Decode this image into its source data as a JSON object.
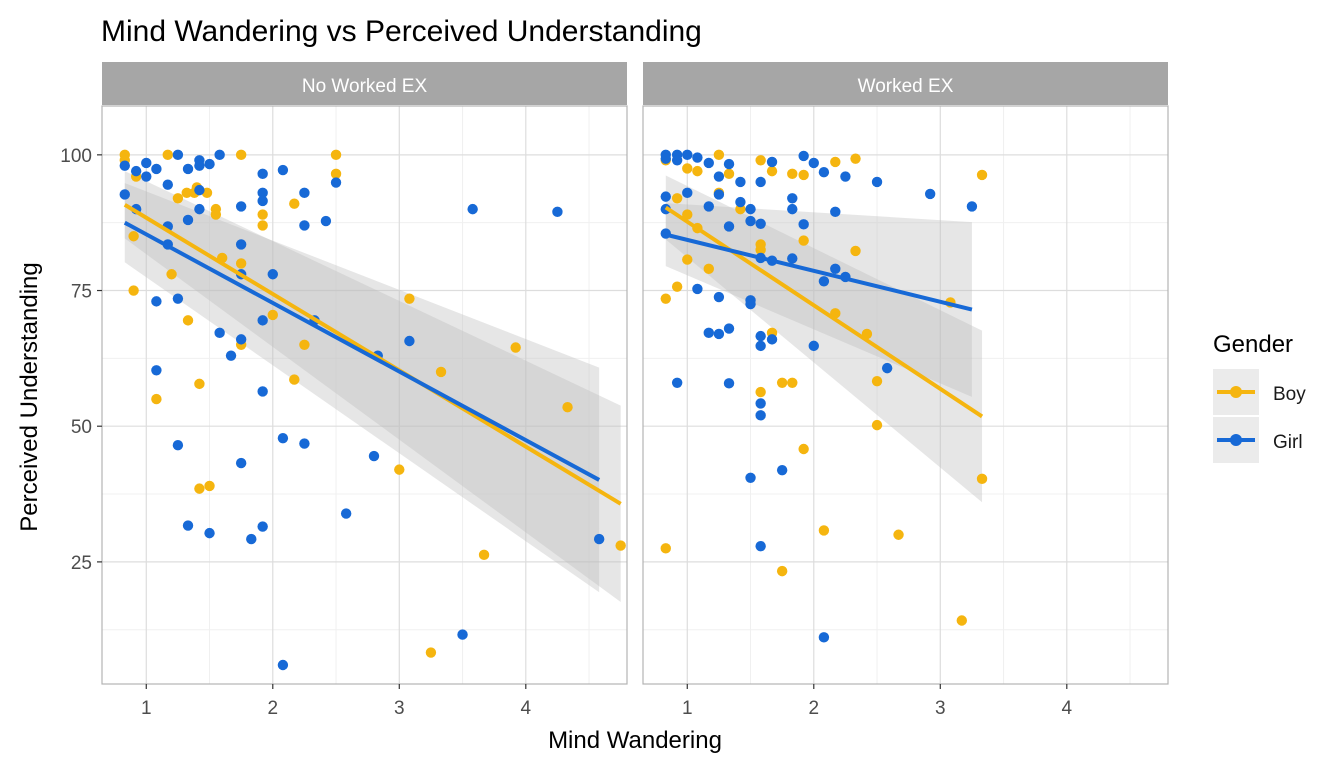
{
  "chart_data": {
    "type": "scatter",
    "title": "Mind Wandering vs Perceived Understanding",
    "xlabel": "Mind Wandering",
    "ylabel": "Perceived Understanding",
    "xlim": [
      0.65,
      4.8
    ],
    "ylim": [
      2.5,
      109
    ],
    "x_ticks": [
      1,
      2,
      3,
      4
    ],
    "y_ticks": [
      25,
      50,
      75,
      100
    ],
    "grid": true,
    "legend_position": "right",
    "legend_title": "Gender",
    "legend": [
      {
        "label": "Boy",
        "color": "#F5B50F"
      },
      {
        "label": "Girl",
        "color": "#1769D6"
      }
    ],
    "band_color": "#BEBEBE",
    "panels": [
      {
        "label": "No Worked EX",
        "series": [
          {
            "name": "Boy",
            "color": "#F5B50F",
            "points": [
              [
                0.83,
                100
              ],
              [
                0.83,
                99
              ],
              [
                0.92,
                96
              ],
              [
                0.9,
                85
              ],
              [
                0.9,
                75
              ],
              [
                1.17,
                100
              ],
              [
                1.2,
                78
              ],
              [
                1.25,
                92
              ],
              [
                1.32,
                93
              ],
              [
                1.38,
                93
              ],
              [
                1.4,
                94
              ],
              [
                1.48,
                93
              ],
              [
                1.55,
                90
              ],
              [
                1.55,
                89
              ],
              [
                1.6,
                81
              ],
              [
                1.75,
                100
              ],
              [
                1.92,
                89
              ],
              [
                1.92,
                87
              ],
              [
                1.75,
                80
              ],
              [
                1.75,
                65
              ],
              [
                2.0,
                70.5
              ],
              [
                2.17,
                91
              ],
              [
                2.25,
                65
              ],
              [
                2.5,
                100
              ],
              [
                2.5,
                96.5
              ],
              [
                1.33,
                69.5
              ],
              [
                1.42,
                57.8
              ],
              [
                1.08,
                55
              ],
              [
                1.42,
                38.5
              ],
              [
                1.5,
                39
              ],
              [
                2.17,
                58.6
              ],
              [
                3.08,
                73.5
              ],
              [
                3.33,
                60
              ],
              [
                3.92,
                64.5
              ],
              [
                3.0,
                42
              ],
              [
                3.67,
                26.3
              ],
              [
                3.25,
                8.3
              ],
              [
                4.33,
                53.5
              ],
              [
                4.75,
                28
              ]
            ],
            "fit": {
              "x": [
                0.83,
                4.75
              ],
              "y": [
                90.8,
                35.7
              ],
              "ci_lower": [
                84.6,
                17.6
              ],
              "ci_upper": [
                97.0,
                53.8
              ]
            }
          },
          {
            "name": "Girl",
            "color": "#1769D6",
            "points": [
              [
                0.83,
                98
              ],
              [
                0.83,
                92.7
              ],
              [
                0.92,
                97
              ],
              [
                0.92,
                90
              ],
              [
                1.0,
                98.5
              ],
              [
                1.0,
                96
              ],
              [
                1.08,
                97.4
              ],
              [
                1.17,
                94.5
              ],
              [
                1.25,
                100
              ],
              [
                1.33,
                97.4
              ],
              [
                1.42,
                99
              ],
              [
                1.42,
                98
              ],
              [
                1.5,
                98.3
              ],
              [
                1.42,
                93.5
              ],
              [
                1.42,
                90
              ],
              [
                1.33,
                88
              ],
              [
                1.17,
                86.8
              ],
              [
                1.17,
                83.5
              ],
              [
                1.08,
                73
              ],
              [
                1.25,
                73.5
              ],
              [
                1.58,
                100
              ],
              [
                1.75,
                90.5
              ],
              [
                1.75,
                83.5
              ],
              [
                1.75,
                78
              ],
              [
                1.92,
                96.5
              ],
              [
                1.92,
                93
              ],
              [
                1.92,
                91.5
              ],
              [
                2.08,
                97.2
              ],
              [
                2.25,
                93
              ],
              [
                2.25,
                87
              ],
              [
                2.42,
                87.8
              ],
              [
                2.5,
                94.9
              ],
              [
                2.0,
                78
              ],
              [
                1.92,
                69.5
              ],
              [
                1.58,
                67.2
              ],
              [
                1.75,
                66
              ],
              [
                1.67,
                63
              ],
              [
                2.33,
                69.5
              ],
              [
                2.83,
                63
              ],
              [
                3.08,
                65.7
              ],
              [
                1.08,
                60.3
              ],
              [
                1.92,
                56.4
              ],
              [
                1.25,
                46.5
              ],
              [
                1.75,
                43.2
              ],
              [
                2.08,
                47.8
              ],
              [
                2.25,
                46.8
              ],
              [
                2.8,
                44.5
              ],
              [
                1.33,
                31.7
              ],
              [
                1.5,
                30.3
              ],
              [
                1.83,
                29.2
              ],
              [
                1.92,
                31.5
              ],
              [
                2.58,
                33.9
              ],
              [
                3.58,
                90
              ],
              [
                4.25,
                89.5
              ],
              [
                4.58,
                29.2
              ],
              [
                3.5,
                11.6
              ],
              [
                2.08,
                6
              ]
            ],
            "fit": {
              "x": [
                0.83,
                4.58
              ],
              "y": [
                87.5,
                40.1
              ],
              "ci_lower": [
                80.2,
                19.4
              ],
              "ci_upper": [
                94.8,
                60.8
              ]
            }
          }
        ]
      },
      {
        "label": "Worked EX",
        "series": [
          {
            "name": "Boy",
            "color": "#F5B50F",
            "points": [
              [
                0.83,
                99
              ],
              [
                0.83,
                73.5
              ],
              [
                0.83,
                27.5
              ],
              [
                0.92,
                92
              ],
              [
                0.92,
                75.7
              ],
              [
                1.0,
                97.5
              ],
              [
                1.0,
                89
              ],
              [
                1.0,
                80.7
              ],
              [
                1.08,
                97
              ],
              [
                1.08,
                86.5
              ],
              [
                1.17,
                79
              ],
              [
                1.25,
                100
              ],
              [
                1.25,
                93
              ],
              [
                1.33,
                96.5
              ],
              [
                1.42,
                90
              ],
              [
                1.58,
                99
              ],
              [
                1.58,
                83.5
              ],
              [
                1.58,
                82.5
              ],
              [
                1.67,
                97
              ],
              [
                1.67,
                67.2
              ],
              [
                1.83,
                96.5
              ],
              [
                1.92,
                96.3
              ],
              [
                1.92,
                84.2
              ],
              [
                1.58,
                56.3
              ],
              [
                1.75,
                58
              ],
              [
                1.83,
                58
              ],
              [
                1.92,
                45.8
              ],
              [
                2.17,
                98.7
              ],
              [
                2.33,
                99.3
              ],
              [
                2.33,
                82.3
              ],
              [
                2.17,
                70.8
              ],
              [
                2.42,
                67
              ],
              [
                2.5,
                58.3
              ],
              [
                2.5,
                50.2
              ],
              [
                2.08,
                30.8
              ],
              [
                2.67,
                30
              ],
              [
                1.75,
                23.3
              ],
              [
                3.08,
                72.8
              ],
              [
                3.33,
                96.3
              ],
              [
                3.33,
                40.3
              ],
              [
                3.17,
                14.2
              ]
            ],
            "fit": {
              "x": [
                0.83,
                3.33
              ],
              "y": [
                90.3,
                51.8
              ],
              "ci_lower": [
                84.4,
                36.0
              ],
              "ci_upper": [
                96.2,
                67.6
              ]
            }
          },
          {
            "name": "Girl",
            "color": "#1769D6",
            "points": [
              [
                0.83,
                100
              ],
              [
                0.83,
                99.3
              ],
              [
                0.83,
                92.3
              ],
              [
                0.83,
                90
              ],
              [
                0.83,
                85.5
              ],
              [
                0.92,
                100
              ],
              [
                0.92,
                99
              ],
              [
                1.0,
                100
              ],
              [
                1.0,
                93
              ],
              [
                1.08,
                99.5
              ],
              [
                1.17,
                98.5
              ],
              [
                1.17,
                90.5
              ],
              [
                1.25,
                96
              ],
              [
                1.25,
                92.7
              ],
              [
                1.33,
                98.3
              ],
              [
                1.33,
                86.8
              ],
              [
                1.42,
                95
              ],
              [
                1.42,
                91.3
              ],
              [
                1.5,
                90
              ],
              [
                1.5,
                87.8
              ],
              [
                1.58,
                95
              ],
              [
                1.58,
                87.3
              ],
              [
                1.58,
                81
              ],
              [
                1.67,
                98.7
              ],
              [
                1.67,
                80.5
              ],
              [
                1.83,
                92
              ],
              [
                1.83,
                90
              ],
              [
                1.83,
                80.9
              ],
              [
                1.92,
                99.8
              ],
              [
                1.92,
                87.2
              ],
              [
                2.0,
                98.5
              ],
              [
                2.08,
                96.8
              ],
              [
                2.17,
                89.5
              ],
              [
                2.25,
                96
              ],
              [
                2.08,
                76.7
              ],
              [
                2.17,
                79
              ],
              [
                2.25,
                77.5
              ],
              [
                2.5,
                95
              ],
              [
                2.92,
                92.8
              ],
              [
                3.25,
                90.5
              ],
              [
                1.08,
                75.3
              ],
              [
                1.25,
                73.8
              ],
              [
                1.5,
                73.2
              ],
              [
                1.5,
                72.5
              ],
              [
                1.17,
                67.2
              ],
              [
                1.25,
                67
              ],
              [
                1.33,
                68
              ],
              [
                1.58,
                66.6
              ],
              [
                1.67,
                66
              ],
              [
                1.58,
                64.8
              ],
              [
                2.0,
                64.8
              ],
              [
                2.58,
                60.7
              ],
              [
                1.33,
                57.9
              ],
              [
                0.92,
                58
              ],
              [
                1.58,
                54.2
              ],
              [
                1.58,
                52
              ],
              [
                1.5,
                40.5
              ],
              [
                1.75,
                41.9
              ],
              [
                1.58,
                27.9
              ],
              [
                2.08,
                11.1
              ]
            ],
            "fit": {
              "x": [
                0.83,
                3.25
              ],
              "y": [
                85.3,
                71.5
              ],
              "ci_lower": [
                79.5,
                55.4
              ],
              "ci_upper": [
                91.1,
                87.6
              ]
            }
          }
        ]
      }
    ]
  }
}
